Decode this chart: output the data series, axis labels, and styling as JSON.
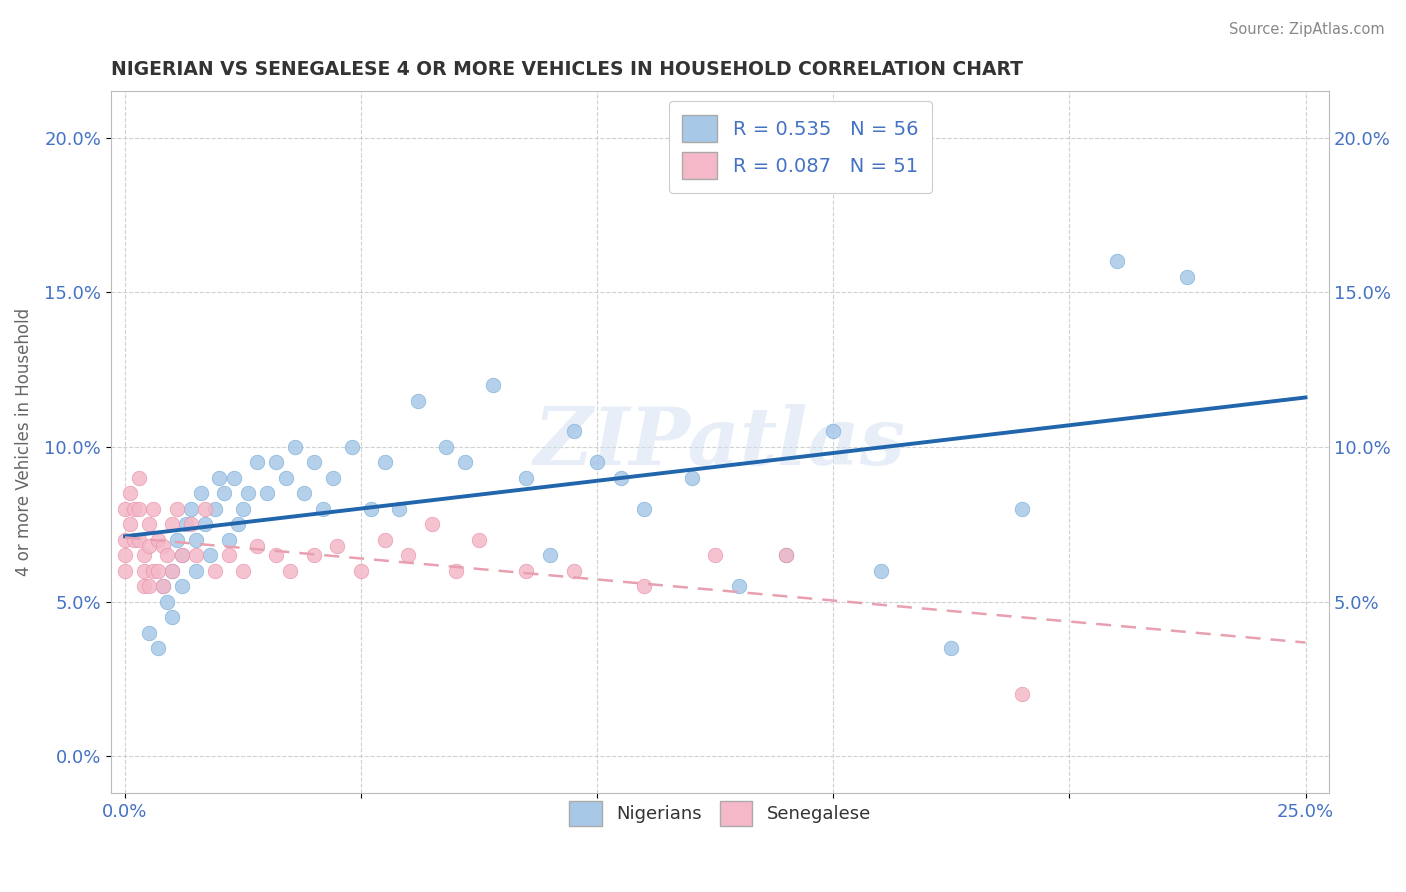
{
  "title": "NIGERIAN VS SENEGALESE 4 OR MORE VEHICLES IN HOUSEHOLD CORRELATION CHART",
  "source": "Source: ZipAtlas.com",
  "ylabel": "4 or more Vehicles in Household",
  "xlim": [
    -0.003,
    0.255
  ],
  "ylim": [
    -0.012,
    0.215
  ],
  "xtick_vals": [
    0.0,
    0.05,
    0.1,
    0.15,
    0.2,
    0.25
  ],
  "xtick_labels": [
    "0.0%",
    "",
    "",
    "",
    "",
    "25.0%"
  ],
  "ytick_vals": [
    0.0,
    0.05,
    0.1,
    0.15,
    0.2
  ],
  "ytick_labels": [
    "0.0%",
    "5.0%",
    "10.0%",
    "15.0%",
    "20.0%"
  ],
  "watermark": "ZIPatlas",
  "nigerian_R": "0.535",
  "nigerian_N": "56",
  "senegalese_R": "0.087",
  "senegalese_N": "51",
  "nigerian_color": "#a8c8e8",
  "nigerian_edge_color": "#7aaed6",
  "senegalese_color": "#f4b8c8",
  "senegalese_edge_color": "#e890a8",
  "nigerian_line_color": "#2166ac",
  "senegalese_line_color": "#e8a0b0",
  "background_color": "#ffffff",
  "grid_color": "#cccccc",
  "nigerian_scatter_x": [
    0.005,
    0.007,
    0.008,
    0.009,
    0.01,
    0.01,
    0.011,
    0.012,
    0.012,
    0.013,
    0.014,
    0.015,
    0.015,
    0.016,
    0.017,
    0.018,
    0.019,
    0.02,
    0.021,
    0.022,
    0.023,
    0.024,
    0.025,
    0.026,
    0.028,
    0.03,
    0.032,
    0.034,
    0.036,
    0.038,
    0.04,
    0.042,
    0.044,
    0.048,
    0.052,
    0.055,
    0.058,
    0.062,
    0.068,
    0.072,
    0.078,
    0.085,
    0.09,
    0.095,
    0.1,
    0.105,
    0.11,
    0.12,
    0.13,
    0.14,
    0.15,
    0.16,
    0.175,
    0.19,
    0.21,
    0.225
  ],
  "nigerian_scatter_y": [
    0.04,
    0.035,
    0.055,
    0.05,
    0.06,
    0.045,
    0.07,
    0.065,
    0.055,
    0.075,
    0.08,
    0.07,
    0.06,
    0.085,
    0.075,
    0.065,
    0.08,
    0.09,
    0.085,
    0.07,
    0.09,
    0.075,
    0.08,
    0.085,
    0.095,
    0.085,
    0.095,
    0.09,
    0.1,
    0.085,
    0.095,
    0.08,
    0.09,
    0.1,
    0.08,
    0.095,
    0.08,
    0.115,
    0.1,
    0.095,
    0.12,
    0.09,
    0.065,
    0.105,
    0.095,
    0.09,
    0.08,
    0.09,
    0.055,
    0.065,
    0.105,
    0.06,
    0.035,
    0.08,
    0.16,
    0.155
  ],
  "senegalese_scatter_x": [
    0.0,
    0.0,
    0.0,
    0.0,
    0.001,
    0.001,
    0.002,
    0.002,
    0.003,
    0.003,
    0.003,
    0.004,
    0.004,
    0.004,
    0.005,
    0.005,
    0.005,
    0.006,
    0.006,
    0.007,
    0.007,
    0.008,
    0.008,
    0.009,
    0.01,
    0.01,
    0.011,
    0.012,
    0.014,
    0.015,
    0.017,
    0.019,
    0.022,
    0.025,
    0.028,
    0.032,
    0.035,
    0.04,
    0.045,
    0.05,
    0.055,
    0.06,
    0.065,
    0.07,
    0.075,
    0.085,
    0.095,
    0.11,
    0.125,
    0.14,
    0.19
  ],
  "senegalese_scatter_y": [
    0.08,
    0.07,
    0.065,
    0.06,
    0.085,
    0.075,
    0.08,
    0.07,
    0.09,
    0.08,
    0.07,
    0.065,
    0.06,
    0.055,
    0.075,
    0.068,
    0.055,
    0.08,
    0.06,
    0.07,
    0.06,
    0.068,
    0.055,
    0.065,
    0.075,
    0.06,
    0.08,
    0.065,
    0.075,
    0.065,
    0.08,
    0.06,
    0.065,
    0.06,
    0.068,
    0.065,
    0.06,
    0.065,
    0.068,
    0.06,
    0.07,
    0.065,
    0.075,
    0.06,
    0.07,
    0.06,
    0.06,
    0.055,
    0.065,
    0.065,
    0.02
  ]
}
